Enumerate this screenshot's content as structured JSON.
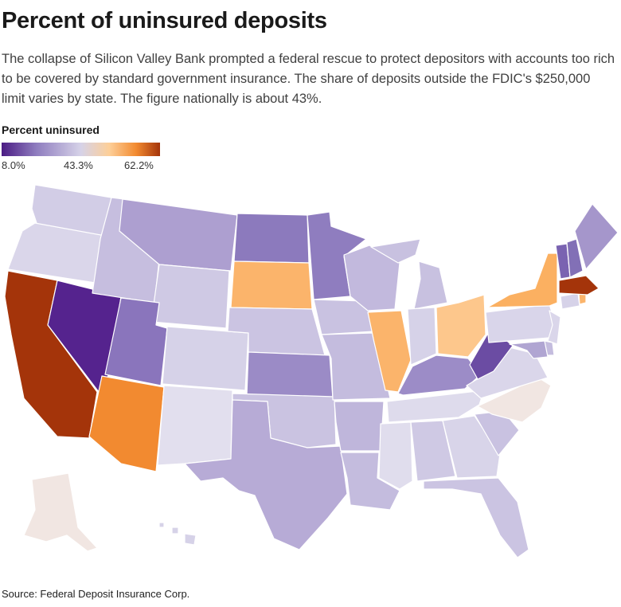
{
  "header": {
    "title": "Percent of uninsured deposits",
    "subtitle": "The collapse of Silicon Valley Bank prompted a federal rescue to protect depositors with accounts too rich to be covered by standard government insurance. The share of deposits outside the FDIC's $250,000 limit varies by state. The figure nationally is about 43%."
  },
  "legend": {
    "title": "Percent uninsured",
    "min_label": "8.0%",
    "mid_label": "43.3%",
    "max_label": "62.2%",
    "gradient_colors": [
      "#4b1c84",
      "#8f7dbf",
      "#d6d2e8",
      "#fdcf98",
      "#f28a30",
      "#a4340a"
    ]
  },
  "map": {
    "states": [
      {
        "name": "Washington",
        "fill": "#d2cde6"
      },
      {
        "name": "Oregon",
        "fill": "#dad6ea"
      },
      {
        "name": "California",
        "fill": "#a4340a"
      },
      {
        "name": "Nevada",
        "fill": "#55238e"
      },
      {
        "name": "Idaho",
        "fill": "#c6bedf"
      },
      {
        "name": "Montana",
        "fill": "#ad9fd0"
      },
      {
        "name": "Wyoming",
        "fill": "#cfc9e4"
      },
      {
        "name": "Utah",
        "fill": "#8a75bc"
      },
      {
        "name": "Arizona",
        "fill": "#f28a30"
      },
      {
        "name": "Colorado",
        "fill": "#d6d2e8"
      },
      {
        "name": "New Mexico",
        "fill": "#e2dfee"
      },
      {
        "name": "North Dakota",
        "fill": "#8c7abd"
      },
      {
        "name": "South Dakota",
        "fill": "#fbb46b"
      },
      {
        "name": "Nebraska",
        "fill": "#cbc4e2"
      },
      {
        "name": "Kansas",
        "fill": "#9b8bc6"
      },
      {
        "name": "Oklahoma",
        "fill": "#cac3e1"
      },
      {
        "name": "Texas",
        "fill": "#b7abd6"
      },
      {
        "name": "Minnesota",
        "fill": "#8f7dbf"
      },
      {
        "name": "Iowa",
        "fill": "#c9c2e1"
      },
      {
        "name": "Missouri",
        "fill": "#c4bcde"
      },
      {
        "name": "Arkansas",
        "fill": "#bfb6db"
      },
      {
        "name": "Louisiana",
        "fill": "#c4bcde"
      },
      {
        "name": "Wisconsin",
        "fill": "#c2b9dd"
      },
      {
        "name": "Illinois",
        "fill": "#fbb46b"
      },
      {
        "name": "Michigan",
        "fill": "#c8c1e0"
      },
      {
        "name": "Indiana",
        "fill": "#d6d2e8"
      },
      {
        "name": "Ohio",
        "fill": "#fdc78c"
      },
      {
        "name": "Kentucky",
        "fill": "#9c8cc7"
      },
      {
        "name": "Tennessee",
        "fill": "#dedbec"
      },
      {
        "name": "Mississippi",
        "fill": "#e0dded"
      },
      {
        "name": "Alabama",
        "fill": "#cfc9e4"
      },
      {
        "name": "Georgia",
        "fill": "#d8d4e9"
      },
      {
        "name": "Florida",
        "fill": "#cbc4e2"
      },
      {
        "name": "South Carolina",
        "fill": "#c9c2e1"
      },
      {
        "name": "North Carolina",
        "fill": "#f1e6e2"
      },
      {
        "name": "Virginia",
        "fill": "#dad6ea"
      },
      {
        "name": "West Virginia",
        "fill": "#6b4ca3"
      },
      {
        "name": "Pennsylvania",
        "fill": "#d9d5ea"
      },
      {
        "name": "New York",
        "fill": "#fbb061"
      },
      {
        "name": "Vermont",
        "fill": "#7a63b1"
      },
      {
        "name": "New Hampshire",
        "fill": "#8270b6"
      },
      {
        "name": "Maine",
        "fill": "#a596cb"
      },
      {
        "name": "Massachusetts",
        "fill": "#a4340a"
      },
      {
        "name": "Connecticut",
        "fill": "#d6d2e8"
      },
      {
        "name": "Rhode Island",
        "fill": "#fbb46b"
      },
      {
        "name": "New Jersey",
        "fill": "#dad6ea"
      },
      {
        "name": "Delaware",
        "fill": "#c4bcde"
      },
      {
        "name": "Maryland",
        "fill": "#b0a5d2"
      },
      {
        "name": "Alaska",
        "fill": "#f1e6e2"
      },
      {
        "name": "Hawaii",
        "fill": "#d6d2e8"
      }
    ]
  },
  "source": "Source: Federal Deposit Insurance Corp."
}
